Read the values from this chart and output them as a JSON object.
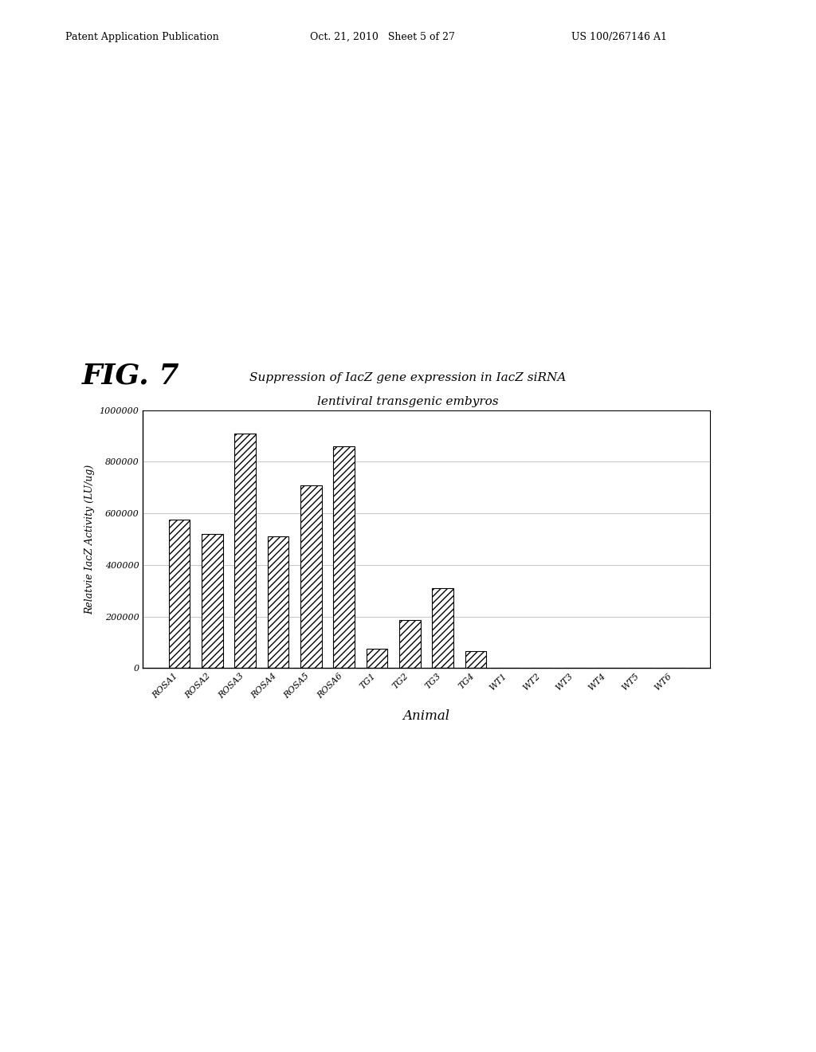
{
  "title_line1": "Suppression of IacZ gene expression in IacZ siRNA",
  "title_line2": "lentiviral transgenic embyros",
  "fig_label": "FIG. 7",
  "xlabel": "Animal",
  "ylabel": "Relatvie IacZ Activity (LU/ug)",
  "categories": [
    "ROSA1",
    "ROSA2",
    "ROSA3",
    "ROSA4",
    "ROSA5",
    "ROSA6",
    "TG1",
    "TG2",
    "TG3",
    "TG4",
    "WT1",
    "WT2",
    "WT3",
    "WT4",
    "WT5",
    "WT6"
  ],
  "values": [
    575000,
    520000,
    910000,
    510000,
    710000,
    860000,
    75000,
    185000,
    310000,
    65000,
    0,
    0,
    0,
    0,
    0,
    0
  ],
  "ylim": [
    0,
    1000000
  ],
  "yticks": [
    0,
    200000,
    400000,
    600000,
    800000,
    1000000
  ],
  "bar_color": "#ffffff",
  "bar_edgecolor": "#000000",
  "hatch": "////",
  "background_color": "#ffffff",
  "grid_color": "#bbbbbb",
  "header_left": "Patent Application Publication",
  "header_mid": "Oct. 21, 2010   Sheet 5 of 27",
  "header_right": "US 100/267146 A1"
}
